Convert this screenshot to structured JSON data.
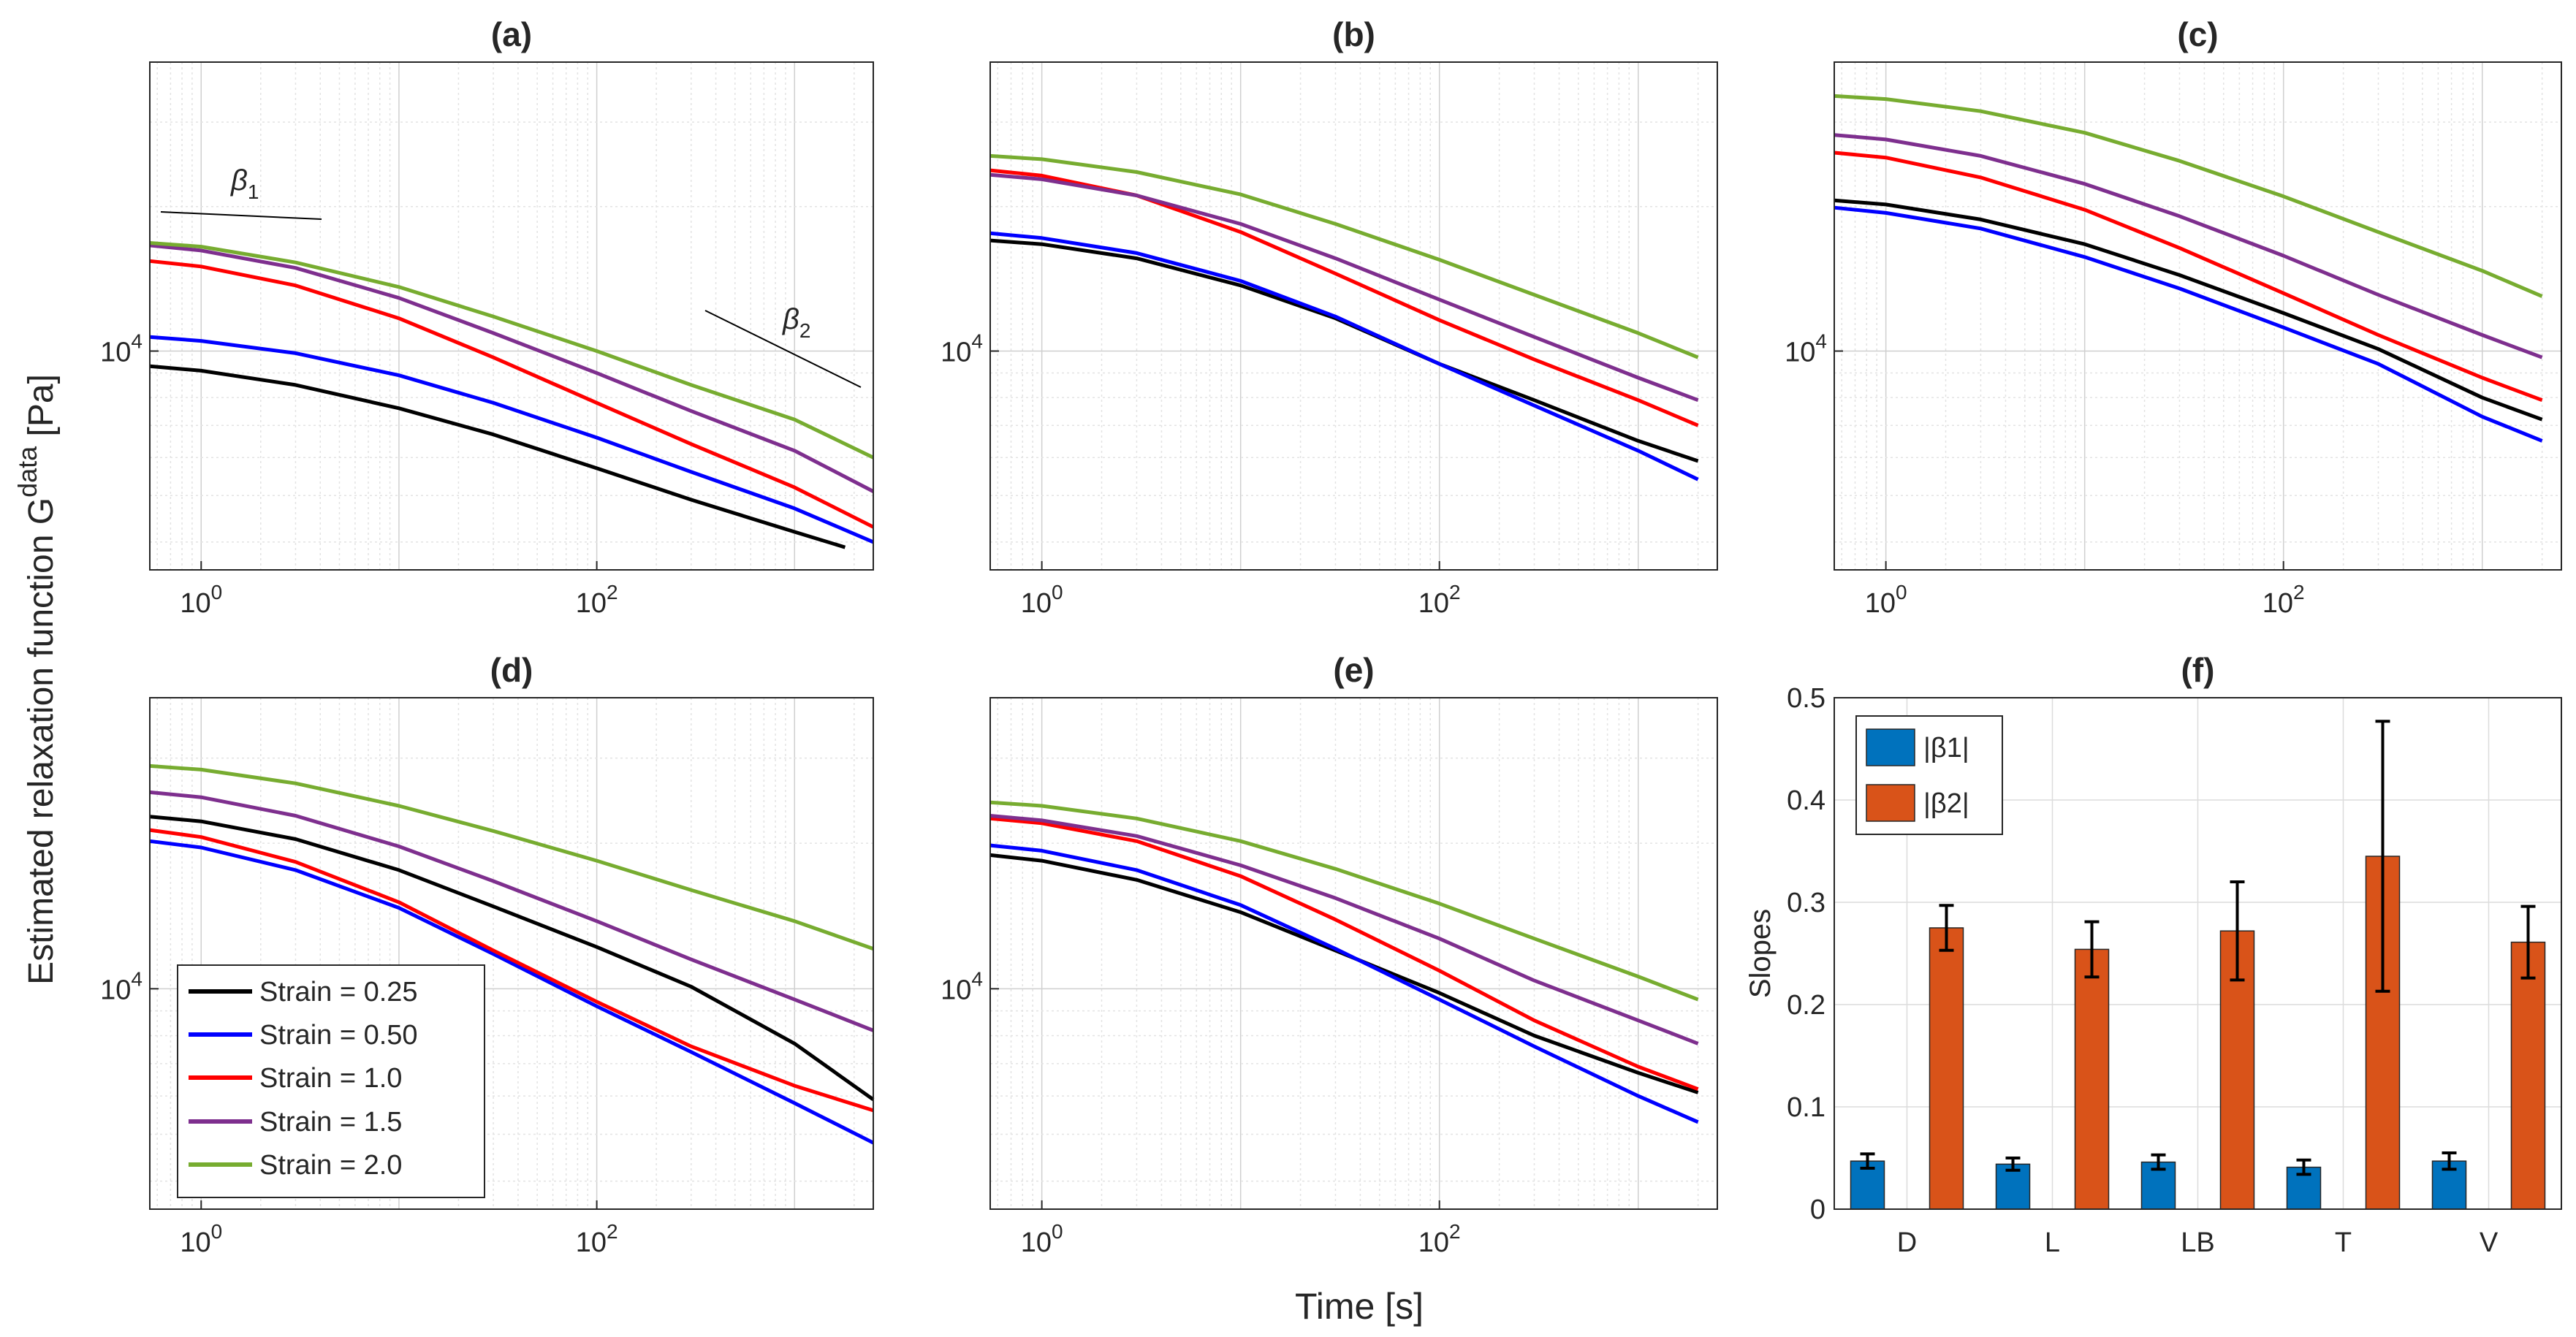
{
  "figure": {
    "ylabel": "Estimated relaxation function G",
    "ylabel_sup": "data",
    "ylabel_unit": " [Pa]",
    "xlabel": "Time [s]"
  },
  "legend": {
    "entries": [
      {
        "label": "Strain = 0.25",
        "color": "#000000"
      },
      {
        "label": "Strain = 0.50",
        "color": "#0000ff"
      },
      {
        "label": "Strain = 1.0",
        "color": "#ff0000"
      },
      {
        "label": "Strain = 1.5",
        "color": "#7e2f8e"
      },
      {
        "label": "Strain = 2.0",
        "color": "#77ac30"
      }
    ]
  },
  "annotations": {
    "beta1": "β",
    "beta1_sub": "1",
    "beta2": "β",
    "beta2_sub": "2"
  },
  "chart_data": [
    {
      "panel": "a",
      "title": "(a)",
      "type": "line",
      "xscale": "log",
      "yscale": "log",
      "xlim": [
        0.55,
        2500
      ],
      "ylim": [
        3500,
        40000
      ],
      "xticks": [
        "10^0",
        "10^2"
      ],
      "yticks": [
        "10^4"
      ],
      "grid": true,
      "series": [
        {
          "name": "Strain = 0.25",
          "color": "#000000",
          "x": [
            0.55,
            1,
            3,
            10,
            30,
            100,
            300,
            1000,
            1800
          ],
          "y": [
            9300,
            9100,
            8500,
            7600,
            6700,
            5700,
            4900,
            4200,
            3900
          ]
        },
        {
          "name": "Strain = 0.50",
          "color": "#0000ff",
          "x": [
            0.55,
            1,
            3,
            10,
            30,
            100,
            300,
            1000,
            2500
          ],
          "y": [
            10700,
            10500,
            9900,
            8900,
            7800,
            6600,
            5600,
            4700,
            4000
          ]
        },
        {
          "name": "Strain = 1.0",
          "color": "#ff0000",
          "x": [
            0.55,
            1,
            3,
            10,
            30,
            100,
            300,
            1000,
            2500
          ],
          "y": [
            15400,
            15000,
            13700,
            11700,
            9700,
            7800,
            6400,
            5200,
            4300
          ]
        },
        {
          "name": "Strain = 1.5",
          "color": "#7e2f8e",
          "x": [
            0.55,
            1,
            3,
            10,
            30,
            100,
            300,
            1000,
            2500
          ],
          "y": [
            16600,
            16200,
            14900,
            12900,
            10900,
            9000,
            7500,
            6200,
            5100
          ]
        },
        {
          "name": "Strain = 2.0",
          "color": "#77ac30",
          "x": [
            0.55,
            1,
            3,
            10,
            30,
            100,
            300,
            1000,
            2500
          ],
          "y": [
            16800,
            16500,
            15300,
            13600,
            11800,
            10000,
            8500,
            7200,
            6000
          ]
        }
      ]
    },
    {
      "panel": "b",
      "title": "(b)",
      "type": "line",
      "xscale": "log",
      "yscale": "log",
      "xlim": [
        0.55,
        2500
      ],
      "ylim": [
        3500,
        40000
      ],
      "xticks": [
        "10^0",
        "10^2"
      ],
      "yticks": [
        "10^4"
      ],
      "grid": true,
      "series": [
        {
          "name": "Strain = 0.25",
          "color": "#000000",
          "x": [
            0.55,
            1,
            3,
            10,
            30,
            100,
            300,
            1000,
            2000
          ],
          "y": [
            17000,
            16700,
            15600,
            13700,
            11700,
            9400,
            7900,
            6500,
            5900
          ]
        },
        {
          "name": "Strain = 0.50",
          "color": "#0000ff",
          "x": [
            0.55,
            1,
            3,
            10,
            30,
            100,
            300,
            1000,
            2000
          ],
          "y": [
            17600,
            17200,
            16000,
            14000,
            11800,
            9400,
            7700,
            6200,
            5400
          ]
        },
        {
          "name": "Strain = 1.0",
          "color": "#ff0000",
          "x": [
            0.55,
            1,
            3,
            10,
            30,
            100,
            300,
            1000,
            2000
          ],
          "y": [
            23800,
            23200,
            21100,
            17700,
            14500,
            11600,
            9600,
            7900,
            7000
          ]
        },
        {
          "name": "Strain = 1.5",
          "color": "#7e2f8e",
          "x": [
            0.55,
            1,
            3,
            10,
            30,
            100,
            300,
            1000,
            2000
          ],
          "y": [
            23300,
            22800,
            21100,
            18400,
            15600,
            12800,
            10700,
            8800,
            7900
          ]
        },
        {
          "name": "Strain = 2.0",
          "color": "#77ac30",
          "x": [
            0.55,
            1,
            3,
            10,
            30,
            100,
            300,
            1000,
            2000
          ],
          "y": [
            25500,
            25100,
            23600,
            21200,
            18400,
            15500,
            13100,
            10900,
            9700
          ]
        }
      ]
    },
    {
      "panel": "c",
      "title": "(c)",
      "type": "line",
      "xscale": "log",
      "yscale": "log",
      "xlim": [
        0.55,
        2500
      ],
      "ylim": [
        3500,
        40000
      ],
      "xticks": [
        "10^0",
        "10^2"
      ],
      "yticks": [
        "10^4"
      ],
      "grid": true,
      "series": [
        {
          "name": "Strain = 0.25",
          "color": "#000000",
          "x": [
            0.55,
            1,
            3,
            10,
            30,
            100,
            300,
            1000,
            2000
          ],
          "y": [
            20600,
            20200,
            18800,
            16700,
            14400,
            12000,
            10100,
            8000,
            7200
          ]
        },
        {
          "name": "Strain = 0.50",
          "color": "#0000ff",
          "x": [
            0.55,
            1,
            3,
            10,
            30,
            100,
            300,
            1000,
            2000
          ],
          "y": [
            19900,
            19400,
            18000,
            15700,
            13500,
            11200,
            9400,
            7300,
            6500
          ]
        },
        {
          "name": "Strain = 1.0",
          "color": "#ff0000",
          "x": [
            0.55,
            1,
            3,
            10,
            30,
            100,
            300,
            1000,
            2000
          ],
          "y": [
            25900,
            25300,
            23000,
            19700,
            16400,
            13200,
            10800,
            8800,
            7900
          ]
        },
        {
          "name": "Strain = 1.5",
          "color": "#7e2f8e",
          "x": [
            0.55,
            1,
            3,
            10,
            30,
            100,
            300,
            1000,
            2000
          ],
          "y": [
            28200,
            27600,
            25500,
            22300,
            19100,
            15800,
            13100,
            10800,
            9700
          ]
        },
        {
          "name": "Strain = 2.0",
          "color": "#77ac30",
          "x": [
            0.55,
            1,
            3,
            10,
            30,
            100,
            300,
            1000,
            2000
          ],
          "y": [
            34000,
            33500,
            31600,
            28500,
            24900,
            21000,
            17700,
            14700,
            13000
          ]
        }
      ]
    },
    {
      "panel": "d",
      "title": "(d)",
      "type": "line",
      "xscale": "log",
      "yscale": "log",
      "xlim": [
        0.55,
        2500
      ],
      "ylim": [
        3500,
        40000
      ],
      "xticks": [
        "10^0",
        "10^2"
      ],
      "yticks": [
        "10^4"
      ],
      "grid": true,
      "series": [
        {
          "name": "Strain = 0.25",
          "color": "#000000",
          "x": [
            0.55,
            1,
            3,
            10,
            30,
            100,
            300,
            1000,
            2500
          ],
          "y": [
            22700,
            22200,
            20400,
            17600,
            14800,
            12200,
            10100,
            7700,
            5900
          ]
        },
        {
          "name": "Strain = 0.50",
          "color": "#0000ff",
          "x": [
            0.55,
            1,
            3,
            10,
            30,
            100,
            300,
            1000,
            2500
          ],
          "y": [
            20200,
            19600,
            17600,
            14700,
            11800,
            9200,
            7400,
            5800,
            4800
          ]
        },
        {
          "name": "Strain = 1.0",
          "color": "#ff0000",
          "x": [
            0.55,
            1,
            3,
            10,
            30,
            100,
            300,
            1000,
            2500
          ],
          "y": [
            21300,
            20600,
            18300,
            15100,
            12000,
            9400,
            7600,
            6300,
            5600
          ]
        },
        {
          "name": "Strain = 1.5",
          "color": "#7e2f8e",
          "x": [
            0.55,
            1,
            3,
            10,
            30,
            100,
            300,
            1000,
            2500
          ],
          "y": [
            25500,
            24900,
            22800,
            19700,
            16700,
            13800,
            11500,
            9500,
            8200
          ]
        },
        {
          "name": "Strain = 2.0",
          "color": "#77ac30",
          "x": [
            0.55,
            1,
            3,
            10,
            30,
            100,
            300,
            1000,
            2500
          ],
          "y": [
            28900,
            28400,
            26600,
            23900,
            21200,
            18400,
            16000,
            13800,
            12100
          ]
        }
      ]
    },
    {
      "panel": "e",
      "title": "(e)",
      "type": "line",
      "xscale": "log",
      "yscale": "log",
      "xlim": [
        0.55,
        2500
      ],
      "ylim": [
        3500,
        40000
      ],
      "xticks": [
        "10^0",
        "10^2"
      ],
      "yticks": [
        "10^4"
      ],
      "grid": true,
      "series": [
        {
          "name": "Strain = 0.25",
          "color": "#000000",
          "x": [
            0.55,
            1,
            3,
            10,
            30,
            100,
            300,
            1000,
            2000
          ],
          "y": [
            18900,
            18400,
            16800,
            14400,
            12000,
            9800,
            8000,
            6700,
            6100
          ]
        },
        {
          "name": "Strain = 0.50",
          "color": "#0000ff",
          "x": [
            0.55,
            1,
            3,
            10,
            30,
            100,
            300,
            1000,
            2000
          ],
          "y": [
            19800,
            19300,
            17600,
            14900,
            12100,
            9500,
            7600,
            6000,
            5300
          ]
        },
        {
          "name": "Strain = 1.0",
          "color": "#ff0000",
          "x": [
            0.55,
            1,
            3,
            10,
            30,
            100,
            300,
            1000,
            2000
          ],
          "y": [
            22500,
            22000,
            20200,
            17100,
            13900,
            10900,
            8600,
            6900,
            6200
          ]
        },
        {
          "name": "Strain = 1.5",
          "color": "#7e2f8e",
          "x": [
            0.55,
            1,
            3,
            10,
            30,
            100,
            300,
            1000,
            2000
          ],
          "y": [
            22800,
            22300,
            20700,
            18000,
            15400,
            12700,
            10400,
            8600,
            7700
          ]
        },
        {
          "name": "Strain = 2.0",
          "color": "#77ac30",
          "x": [
            0.55,
            1,
            3,
            10,
            30,
            100,
            300,
            1000,
            2000
          ],
          "y": [
            24300,
            23900,
            22500,
            20200,
            17700,
            15000,
            12700,
            10600,
            9500
          ]
        }
      ]
    },
    {
      "panel": "f",
      "title": "(f)",
      "type": "bar",
      "categories": [
        "D",
        "L",
        "LB",
        "T",
        "V"
      ],
      "ylabel": "Slopes",
      "ylim": [
        0,
        0.5
      ],
      "yticks": [
        "0",
        "0.1",
        "0.2",
        "0.3",
        "0.4",
        "0.5"
      ],
      "grid": true,
      "legend": "top-left",
      "series": [
        {
          "name": "|β1|",
          "color": "#0072bd",
          "values": [
            0.047,
            0.044,
            0.046,
            0.041,
            0.047
          ],
          "err": [
            0.007,
            0.006,
            0.007,
            0.007,
            0.008
          ]
        },
        {
          "name": "|β2|",
          "color": "#d95319",
          "values": [
            0.275,
            0.254,
            0.272,
            0.345,
            0.261
          ],
          "err": [
            0.022,
            0.027,
            0.048,
            0.132,
            0.035
          ]
        }
      ]
    }
  ]
}
